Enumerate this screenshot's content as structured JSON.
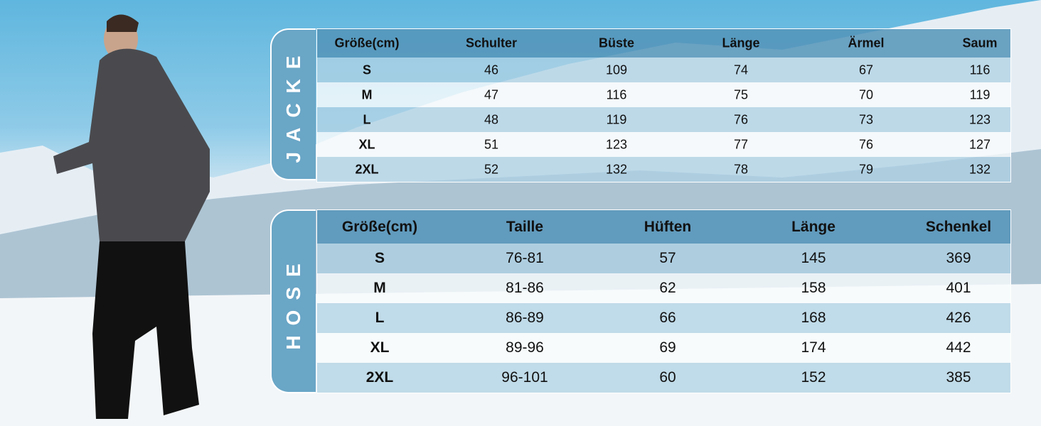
{
  "jacke": {
    "label": "JACKE",
    "headers": [
      "Größe(cm)",
      "Schulter",
      "Büste",
      "Länge",
      "Ärmel",
      "Saum"
    ],
    "rows": [
      [
        "S",
        "46",
        "109",
        "74",
        "67",
        "116"
      ],
      [
        "M",
        "47",
        "116",
        "75",
        "70",
        "119"
      ],
      [
        "L",
        "48",
        "119",
        "76",
        "73",
        "123"
      ],
      [
        "XL",
        "51",
        "123",
        "77",
        "76",
        "127"
      ],
      [
        "2XL",
        "52",
        "132",
        "78",
        "79",
        "132"
      ]
    ]
  },
  "hose": {
    "label": "HOSE",
    "headers": [
      "Größe(cm)",
      "Taille",
      "Hüften",
      "Länge",
      "Schenkel"
    ],
    "rows": [
      [
        "S",
        "76-81",
        "57",
        "145",
        "369"
      ],
      [
        "M",
        "81-86",
        "62",
        "158",
        "401"
      ],
      [
        "L",
        "86-89",
        "66",
        "168",
        "426"
      ],
      [
        "XL",
        "89-96",
        "69",
        "174",
        "442"
      ],
      [
        "2XL",
        "96-101",
        "60",
        "152",
        "385"
      ]
    ]
  },
  "colors": {
    "accent": "#6aa6c6",
    "header": "#5394b8"
  }
}
